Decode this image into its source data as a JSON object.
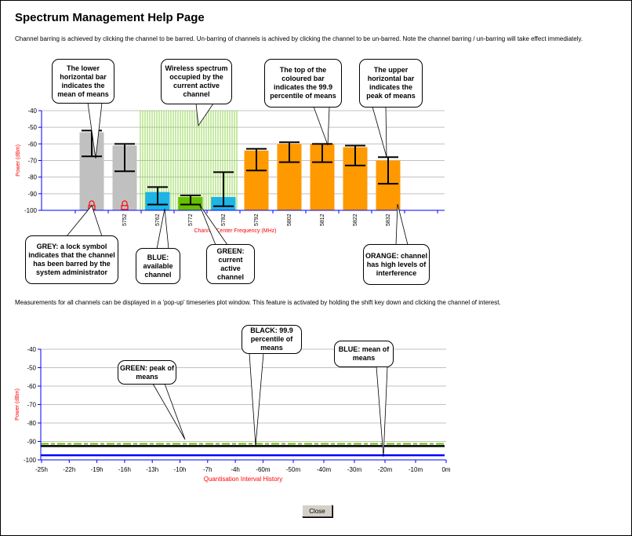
{
  "title": "Spectrum Management Help Page",
  "intro": "Channel barring is achieved by clicking the channel to be barred. Un-barring of channels is achived by clicking the channel to be un-barred. Note the channel barring / un-barring will take effect immediately.",
  "popup_text": "Measurements for all channels can be displayed in a 'pop-up' timeseries plot window. This feature is activated by holding the shift key down and clicking the channel of interest.",
  "close_label": "Close",
  "callouts_top": {
    "lower_bar": "The lower horizontal bar indicates the mean of means",
    "wireless": "Wireless spectrum occupied by the current active channel",
    "top_bar": "The top of the coloured bar indicates the 99.9 percentile of means",
    "upper_bar": "The upper horizontal bar indicates the peak of means",
    "grey": "GREY: a lock symbol indicates that the channel has been barred by the system administrator",
    "blue": "BLUE: available channel",
    "green": "GREEN: current active channel",
    "orange": "ORANGE: channel has high levels of interference"
  },
  "callouts_bottom": {
    "green": "GREEN: peak of means",
    "black": "BLACK: 99.9 percentile of means",
    "blue": "BLUE: mean of means"
  },
  "colors": {
    "grey": "#c0c0c0",
    "blue": "#1eb4e6",
    "green": "#66c000",
    "orange": "#ff9900",
    "axis": "#0000ff",
    "label": "#ff0000"
  },
  "chart_data": [
    {
      "type": "bar",
      "xlabel": "Channel Center Frequency (MHz)",
      "ylabel": "Power (dBm)",
      "ylim": [
        -100,
        -40
      ],
      "yticks": [
        "-40",
        "-50",
        "-60",
        "-70",
        "-80",
        "-90",
        "-100"
      ],
      "categories": [
        "",
        "5752",
        "5762",
        "5772",
        "5782",
        "5792",
        "5802",
        "5812",
        "5822",
        "5832"
      ],
      "bars": [
        {
          "state": "grey",
          "locked": true,
          "p999": -53,
          "peak": -52,
          "mean": -67.5
        },
        {
          "state": "grey",
          "locked": true,
          "p999": -61,
          "peak": -60,
          "mean": -76.5
        },
        {
          "state": "blue",
          "p999": -89,
          "peak": -86,
          "mean": -96.5
        },
        {
          "state": "green",
          "p999": -92,
          "peak": -91,
          "mean": -96.5
        },
        {
          "state": "blue",
          "p999": -92,
          "peak": -77,
          "mean": -97.5
        },
        {
          "state": "orange",
          "p999": -64,
          "peak": -63,
          "mean": -76
        },
        {
          "state": "orange",
          "p999": -60,
          "peak": -59,
          "mean": -71
        },
        {
          "state": "orange",
          "p999": -60,
          "peak": -60,
          "mean": -71
        },
        {
          "state": "orange",
          "p999": -62,
          "peak": -61,
          "mean": -73
        },
        {
          "state": "orange",
          "p999": -70,
          "peak": -68,
          "mean": -84
        }
      ],
      "active_span_channels": [
        "5762",
        "5782"
      ]
    },
    {
      "type": "line",
      "xlabel": "Quantisation Interval History",
      "ylabel": "Power (dBm)",
      "ylim": [
        -100,
        -40
      ],
      "yticks": [
        "-40",
        "-50",
        "-60",
        "-70",
        "-80",
        "-90",
        "-100"
      ],
      "xticks": [
        "-25h",
        "-22h",
        "-19h",
        "-16h",
        "-13h",
        "-10h",
        "-7h",
        "-4h",
        "-60m",
        "-50m",
        "-40m",
        "-30m",
        "-20m",
        "-10m",
        "0m"
      ],
      "series": [
        {
          "name": "peak of means",
          "color": "#66c000",
          "value": -91.3
        },
        {
          "name": "99.9 percentile of means",
          "color": "#000000",
          "value": -92.5
        },
        {
          "name": "mean of means",
          "color": "#0000ff",
          "value": -97.5
        }
      ]
    }
  ]
}
